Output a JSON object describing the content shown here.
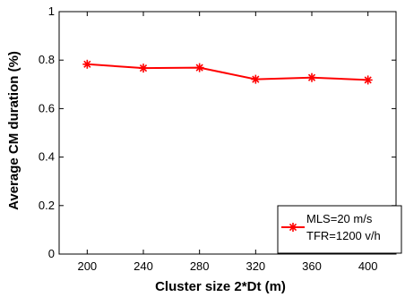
{
  "chart_data": {
    "type": "line",
    "xlabel": "Cluster size 2*Dt (m)",
    "ylabel": "Average CM duration (%)",
    "xlim": [
      180,
      420
    ],
    "ylim": [
      0,
      1
    ],
    "x_ticks": [
      200,
      240,
      280,
      320,
      360,
      400
    ],
    "y_ticks": [
      0,
      0.2,
      0.4,
      0.6,
      0.8,
      1
    ],
    "y_tick_labels": [
      "0",
      "0.2",
      "0.4",
      "0.6",
      "0.8",
      "1"
    ],
    "grid": false,
    "legend_position": "bottom-right",
    "legend_lines": [
      "MLS=20 m/s",
      "TFR=1200 v/h"
    ],
    "series": [
      {
        "color": "#ff0000",
        "marker": "asterisk",
        "x": [
          200,
          240,
          280,
          320,
          360,
          400
        ],
        "y": [
          0.783,
          0.767,
          0.769,
          0.721,
          0.728,
          0.718
        ]
      }
    ]
  }
}
